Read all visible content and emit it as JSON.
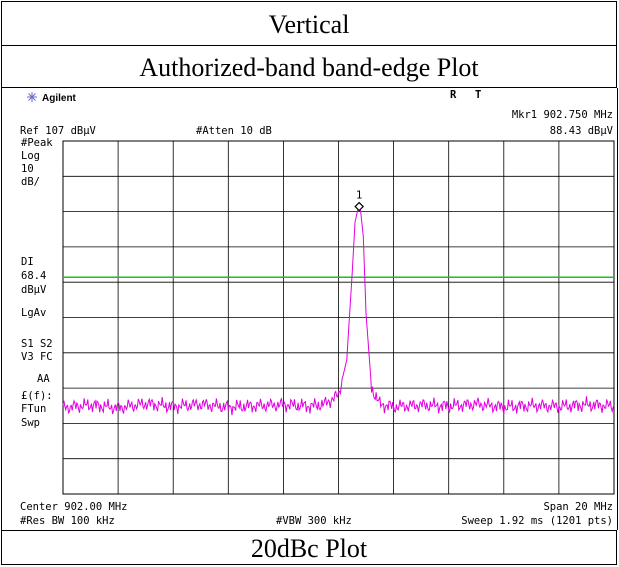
{
  "table": {
    "row1_text": "Vertical",
    "row2_text": "Authorized-band band-edge Plot",
    "row4_text": "20dBc Plot"
  },
  "analyzer": {
    "brand": "Agilent",
    "brand_icon": "agilent-spark-icon",
    "status_r": "R",
    "status_t": "T",
    "marker_readout_freq": "Mkr1  902.750 MHz",
    "marker_readout_level": "88.43 dBµV",
    "ref_level": "Ref 107 dBµV",
    "atten": "#Atten 10 dB",
    "left_annotations": [
      "#Peak",
      "Log",
      "10",
      "dB/",
      "DI",
      "68.4",
      "dBµV",
      "LgAv",
      "S1  S2",
      "V3  FC",
      "AA",
      "£(f):",
      "FTun",
      "Swp"
    ],
    "center": "Center 902.00 MHz",
    "span": "Span 20 MHz",
    "res_bw": "#Res BW 100 kHz",
    "vbw": "#VBW 300 kHz",
    "sweep": "Sweep 1.92 ms (1201 pts)",
    "marker_label": "1",
    "trace_color": "#e000e0",
    "display_line_color": "#22bb22",
    "grid_color": "#000000"
  },
  "chart_data": {
    "type": "line",
    "title": "",
    "xlabel": "",
    "ylabel": "",
    "x_unit": "MHz",
    "y_unit": "dBµV",
    "xlim": [
      892.0,
      912.0
    ],
    "ylim": [
      7,
      107
    ],
    "y_div": 10,
    "x_div": 10,
    "display_line": 68.4,
    "marker": {
      "x": 902.75,
      "y": 88.43,
      "label": "1"
    },
    "series": [
      {
        "x": [
          892.0,
          893.0,
          894.0,
          895.0,
          896.0,
          897.0,
          898.0,
          899.0,
          900.0,
          901.0,
          901.5,
          902.0,
          902.3,
          902.5,
          902.6,
          902.7,
          902.75,
          902.8,
          902.9,
          903.0,
          903.2,
          903.5,
          904.0,
          905.0,
          906.0,
          907.0,
          908.0,
          909.0,
          910.0,
          911.0,
          912.0
        ],
        "values": [
          31.5,
          32.2,
          31.4,
          32.6,
          31.8,
          32.4,
          31.6,
          32.0,
          32.3,
          31.9,
          32.5,
          35.0,
          45.0,
          70.0,
          84.0,
          87.5,
          88.43,
          87.3,
          80.0,
          58.0,
          37.0,
          32.4,
          31.7,
          32.2,
          31.9,
          32.5,
          31.6,
          32.1,
          31.8,
          32.3,
          31.9
        ]
      }
    ]
  }
}
